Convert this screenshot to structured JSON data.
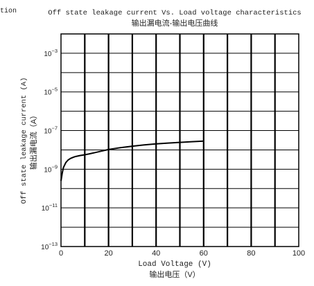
{
  "chart_data": {
    "type": "line",
    "title": "Off state leakage current Vs. Load voltage characteristics",
    "subtitle": "输出漏电流-输出电压曲线",
    "clipped_caption": "tion",
    "xlabel": "Load Voltage (V)",
    "xlabel_cn": "输出电压（V）",
    "ylabel": "Off state leakage current (A)",
    "ylabel_cn": "输出漏电流（A）",
    "x_ticks": [
      "0",
      "20",
      "40",
      "60",
      "80",
      "100"
    ],
    "x_tick_values": [
      0,
      20,
      40,
      60,
      80,
      100
    ],
    "y_ticks": [
      {
        "base": "10",
        "exp": "−3",
        "value": -3
      },
      {
        "base": "10",
        "exp": "−5",
        "value": -5
      },
      {
        "base": "10",
        "exp": "−7",
        "value": -7
      },
      {
        "base": "10",
        "exp": "−9",
        "value": -9
      },
      {
        "base": "10",
        "exp": "−11",
        "value": -11
      },
      {
        "base": "10",
        "exp": "−13",
        "value": -13
      }
    ],
    "xlim": [
      0,
      100
    ],
    "ylim_log10": [
      -13,
      -2
    ],
    "y_scale": "log",
    "grid": true,
    "series": [
      {
        "x": [
          0,
          0.5,
          1,
          2,
          3,
          4,
          5,
          6,
          8,
          10,
          12,
          15,
          20,
          25,
          30,
          35,
          40,
          45,
          50,
          55,
          60
        ],
        "y": [
          2.5e-10,
          6e-10,
          1.2e-09,
          2.2e-09,
          3e-09,
          3.6e-09,
          4.1e-09,
          4.5e-09,
          5.1e-09,
          5.6e-09,
          6.3e-09,
          7.6e-09,
          1.05e-08,
          1.3e-08,
          1.55e-08,
          1.8e-08,
          2.05e-08,
          2.25e-08,
          2.45e-08,
          2.65e-08,
          2.85e-08
        ]
      }
    ]
  }
}
